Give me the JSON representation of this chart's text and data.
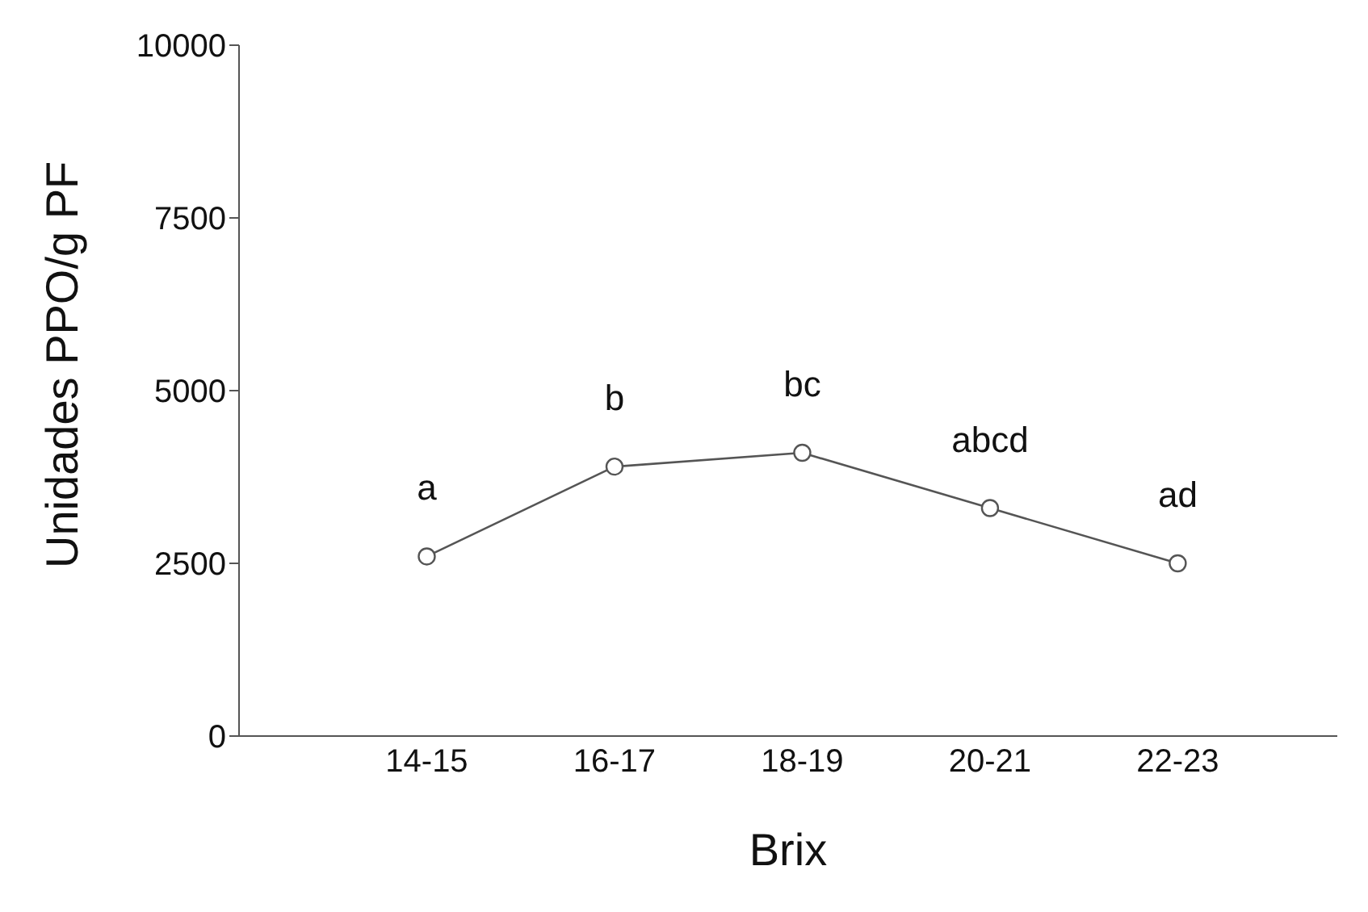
{
  "chart_data": {
    "type": "line",
    "xlabel": "Brix",
    "ylabel": "Unidades PPO/g PF",
    "categories": [
      "14-15",
      "16-17",
      "18-19",
      "20-21",
      "22-23"
    ],
    "series": [
      {
        "color": "#555555",
        "values": [
          2600,
          3900,
          4100,
          3300,
          2500
        ]
      }
    ],
    "ylim": [
      0,
      10000
    ],
    "yticks": [
      0,
      2500,
      5000,
      7500,
      10000
    ],
    "marker": "circle",
    "line_style": "solid",
    "grid": false,
    "legend": false,
    "annotations": [
      "a",
      "b",
      "bc",
      "abcd",
      "ad"
    ]
  }
}
